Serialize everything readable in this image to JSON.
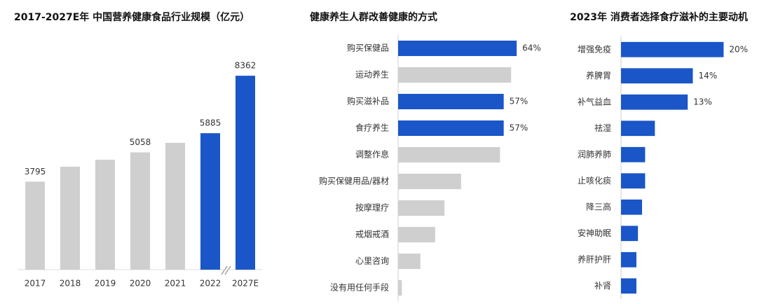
{
  "chart_data": [
    {
      "type": "bar",
      "title": "2017-2027E年 中国营养健康食品行业规模（亿元）",
      "categories": [
        "2017",
        "2018",
        "2019",
        "2020",
        "2021",
        "2022",
        "2027E"
      ],
      "values": [
        3795,
        4440,
        4740,
        5058,
        5470,
        5885,
        8362
      ],
      "value_labels": [
        "3795",
        null,
        null,
        "5058",
        null,
        "5885",
        "8362"
      ],
      "colors": [
        "#d0cfcf",
        "#d0cfcf",
        "#d0cfcf",
        "#d0cfcf",
        "#d0cfcf",
        "#1a56c8",
        "#1a56c8"
      ],
      "ylim": [
        0,
        9000
      ]
    },
    {
      "type": "barh",
      "title": "健康养生人群改善健康的方式",
      "categories": [
        "购买保健品",
        "运动养生",
        "购买滋补品",
        "食疗养生",
        "调整作息",
        "购买保健用品/器材",
        "按摩理疗",
        "戒烟戒酒",
        "心里咨询",
        "没有用任何手段"
      ],
      "values": [
        64,
        61,
        57,
        57,
        55,
        34,
        25,
        20,
        12,
        2
      ],
      "value_labels": [
        "64%",
        null,
        "57%",
        "57%",
        null,
        null,
        null,
        null,
        null,
        null
      ],
      "colors": [
        "#1a56c8",
        "#d0cfcf",
        "#1a56c8",
        "#1a56c8",
        "#d0cfcf",
        "#d0cfcf",
        "#d0cfcf",
        "#d0cfcf",
        "#d0cfcf",
        "#d0cfcf"
      ],
      "xlim": [
        0,
        70
      ]
    },
    {
      "type": "barh",
      "title": "2023年 消费者选择食疗滋补的主要动机",
      "categories": [
        "增强免疫",
        "养脾胃",
        "补气益血",
        "祛湿",
        "润肺养肺",
        "止咳化痰",
        "降三高",
        "安神助眠",
        "养肝护肝",
        "补肾"
      ],
      "values": [
        20,
        14,
        13,
        6.6,
        4.7,
        4.7,
        4.1,
        3.3,
        3.0,
        3.0
      ],
      "value_labels": [
        "20%",
        "14%",
        "13%",
        null,
        null,
        null,
        null,
        null,
        null,
        null
      ],
      "colors": [
        "#1a56c8",
        "#1a56c8",
        "#1a56c8",
        "#1a56c8",
        "#1a56c8",
        "#1a56c8",
        "#1a56c8",
        "#1a56c8",
        "#1a56c8",
        "#1a56c8"
      ],
      "xlim": [
        0,
        22
      ]
    }
  ]
}
